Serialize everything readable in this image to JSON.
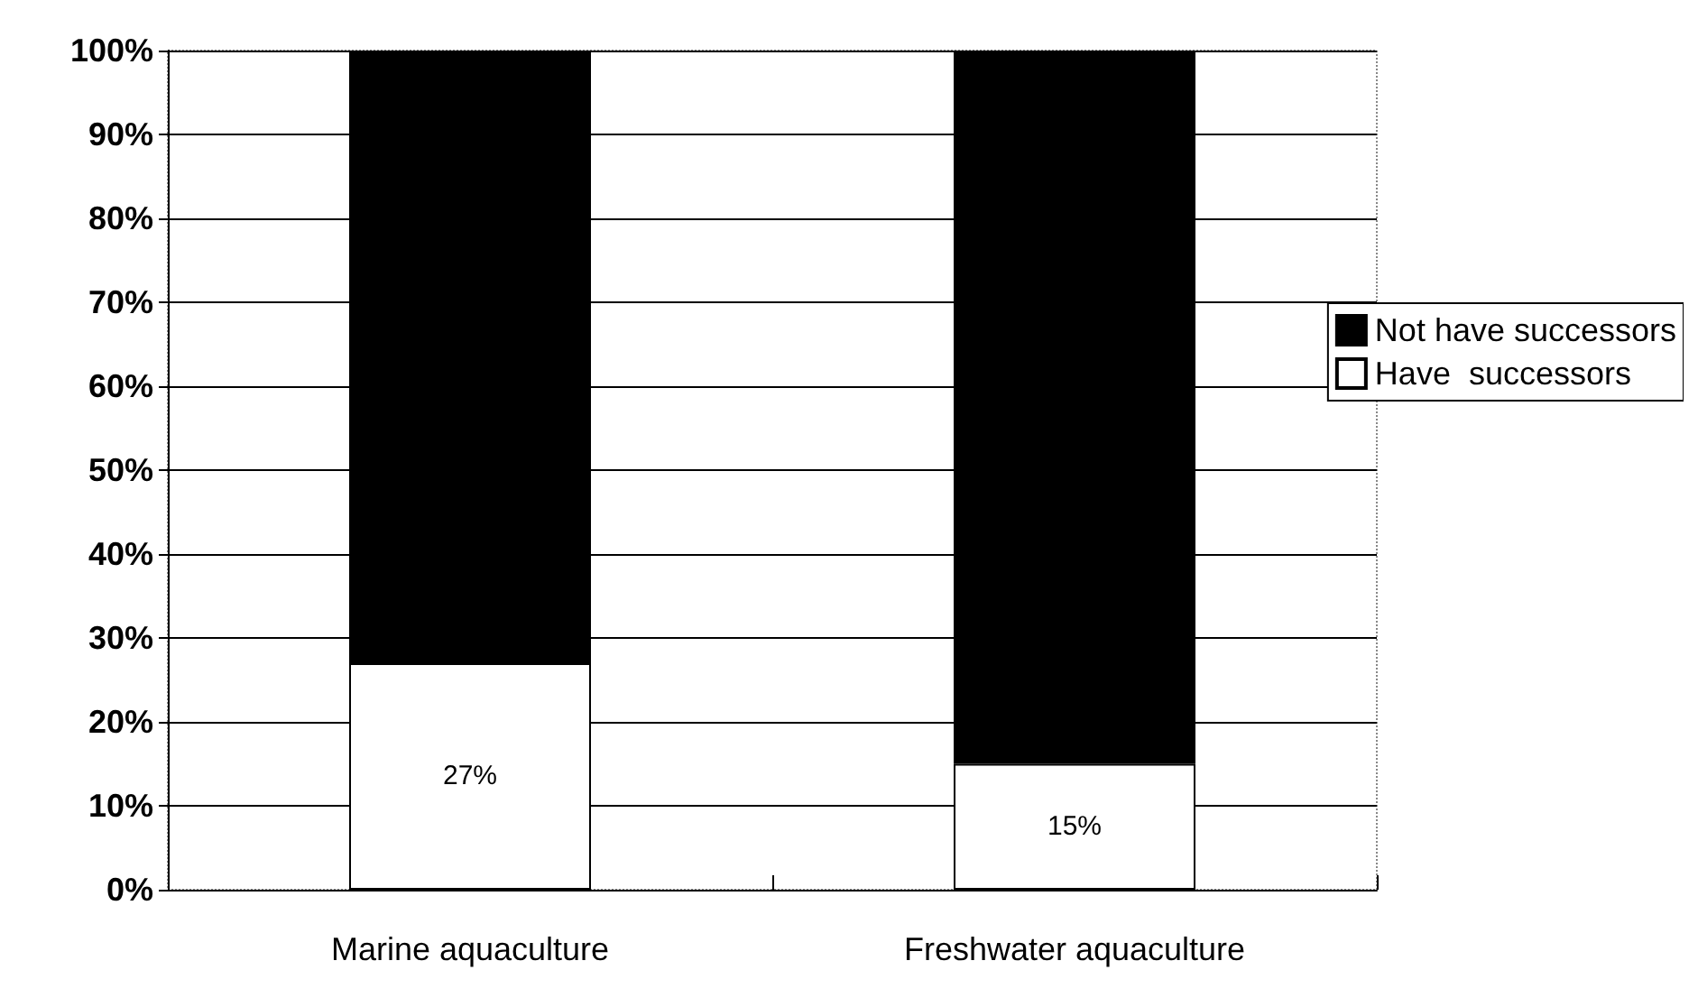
{
  "chart_data": {
    "type": "bar",
    "stacked": true,
    "categories": [
      "Marine aquaculture",
      "Freshwater aquaculture"
    ],
    "series": [
      {
        "name": "Have  successors",
        "color": "#ffffff",
        "values": [
          27,
          15
        ],
        "value_labels": [
          "27%",
          "15%"
        ]
      },
      {
        "name": "Not have successors",
        "color": "#000000",
        "values": [
          73,
          85
        ]
      }
    ],
    "ylim": [
      0,
      100
    ],
    "yticks": [
      {
        "value": 0,
        "label": "0%"
      },
      {
        "value": 10,
        "label": "10%"
      },
      {
        "value": 20,
        "label": "20%"
      },
      {
        "value": 30,
        "label": "30%"
      },
      {
        "value": 40,
        "label": "40%"
      },
      {
        "value": 50,
        "label": "50%"
      },
      {
        "value": 60,
        "label": "60%"
      },
      {
        "value": 70,
        "label": "70%"
      },
      {
        "value": 80,
        "label": "80%"
      },
      {
        "value": 90,
        "label": "90%"
      },
      {
        "value": 100,
        "label": "100%"
      }
    ],
    "grid": "y",
    "legend": "right"
  }
}
